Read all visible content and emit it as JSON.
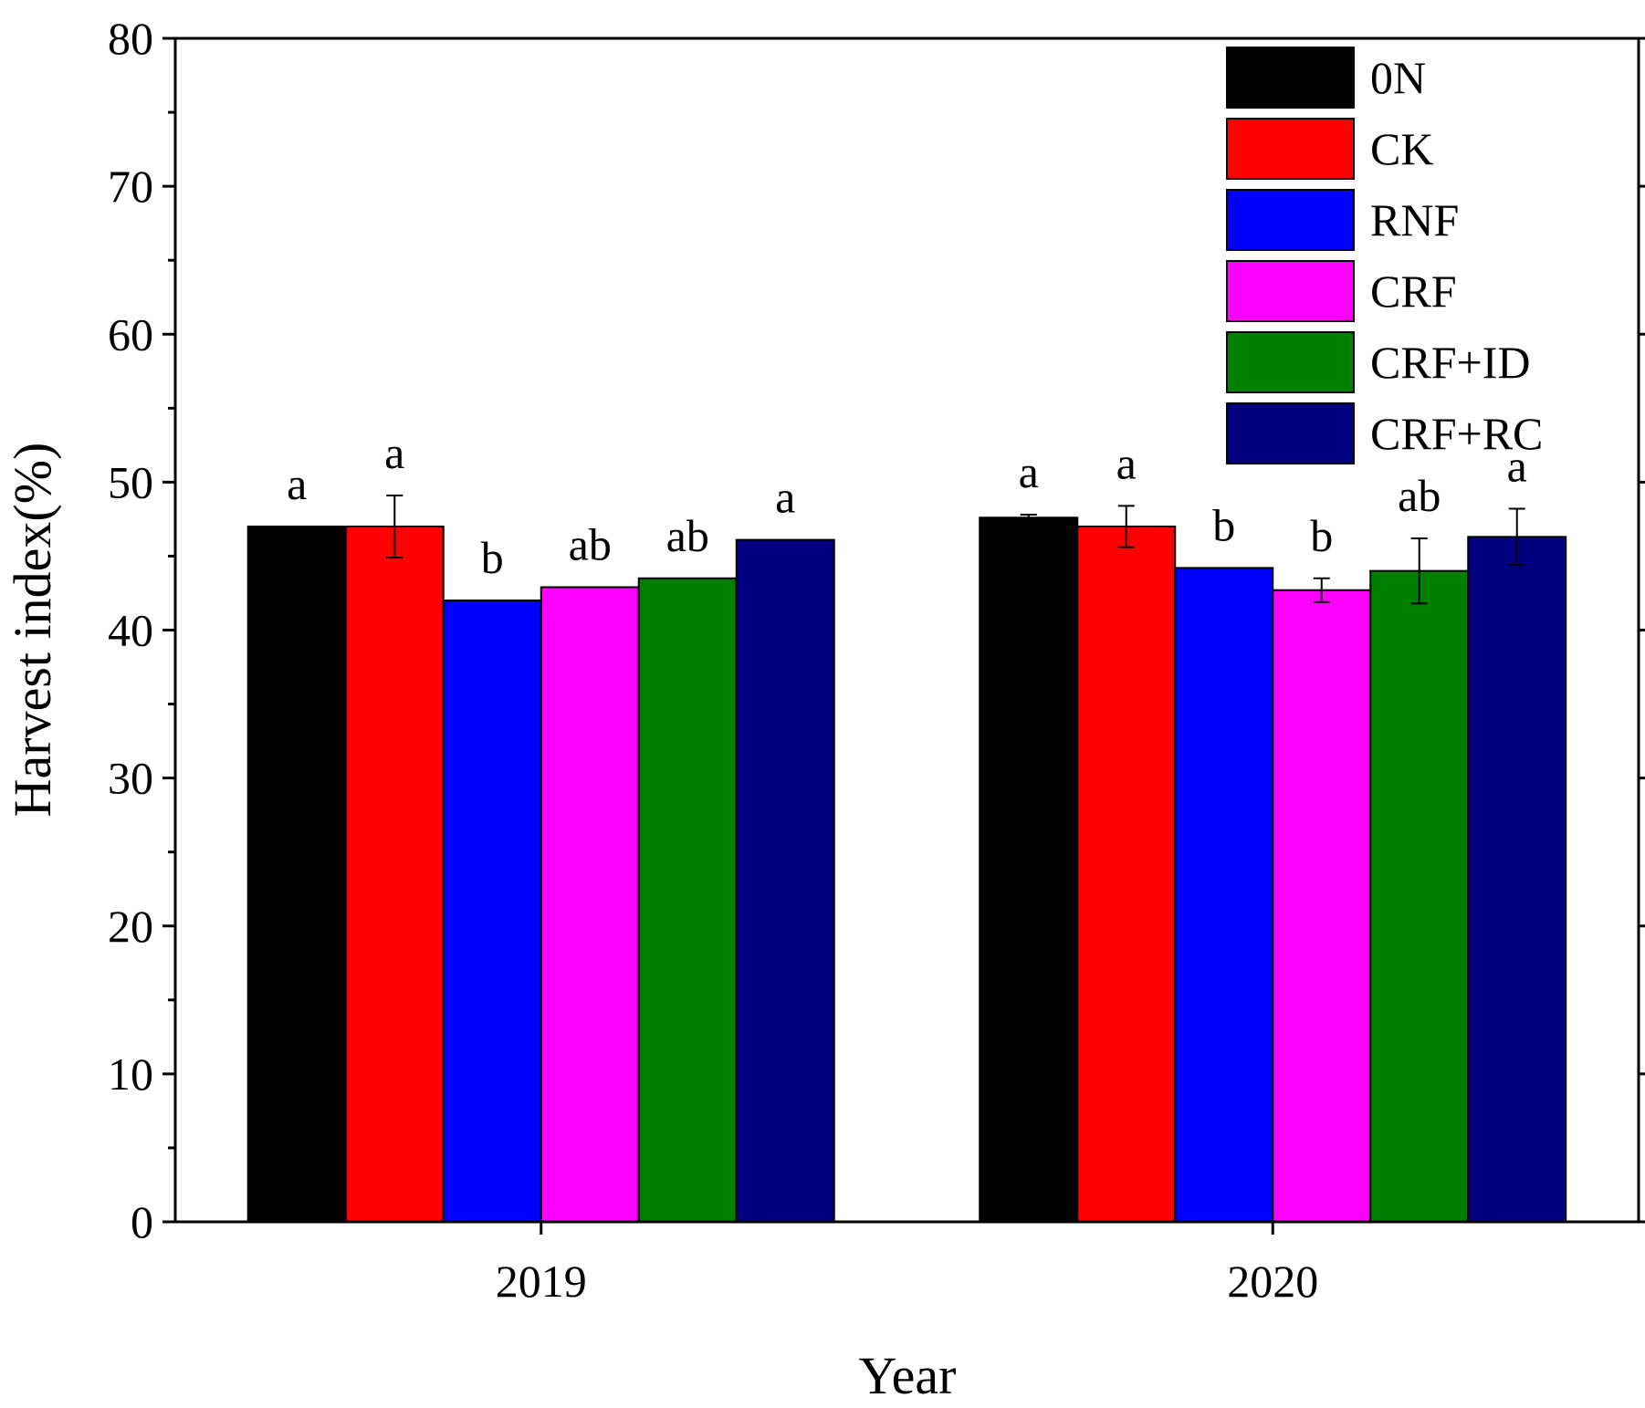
{
  "chart_data": {
    "type": "bar",
    "title": "",
    "xlabel": "Year",
    "ylabel": "Harvest index(%)",
    "ylim": [
      0,
      80
    ],
    "yticks": [
      0,
      10,
      20,
      30,
      40,
      50,
      60,
      70,
      80
    ],
    "categories": [
      "2019",
      "2020"
    ],
    "legend_position": "top-right",
    "series": [
      {
        "name": "0N",
        "color": "#000000",
        "values": [
          47.0,
          47.6
        ],
        "errors": [
          0.0,
          0.2
        ],
        "letters": [
          "a",
          "a"
        ]
      },
      {
        "name": "CK",
        "color": "#ff0000",
        "values": [
          47.0,
          47.0
        ],
        "errors": [
          2.1,
          1.4
        ],
        "letters": [
          "a",
          "a"
        ]
      },
      {
        "name": "RNF",
        "color": "#0000ff",
        "values": [
          42.0,
          44.2
        ],
        "errors": [
          0.0,
          0.0
        ],
        "letters": [
          "b",
          "b"
        ]
      },
      {
        "name": "CRF",
        "color": "#ff00ff",
        "values": [
          42.9,
          42.7
        ],
        "errors": [
          0.0,
          0.8
        ],
        "letters": [
          "ab",
          "b"
        ]
      },
      {
        "name": "CRF+ID",
        "color": "#008000",
        "values": [
          43.5,
          44.0
        ],
        "errors": [
          0.0,
          2.2
        ],
        "letters": [
          "ab",
          "ab"
        ]
      },
      {
        "name": "CRF+RC",
        "color": "#000080",
        "values": [
          46.1,
          46.3
        ],
        "errors": [
          0.0,
          1.9
        ],
        "letters": [
          "a",
          "a"
        ]
      }
    ]
  }
}
